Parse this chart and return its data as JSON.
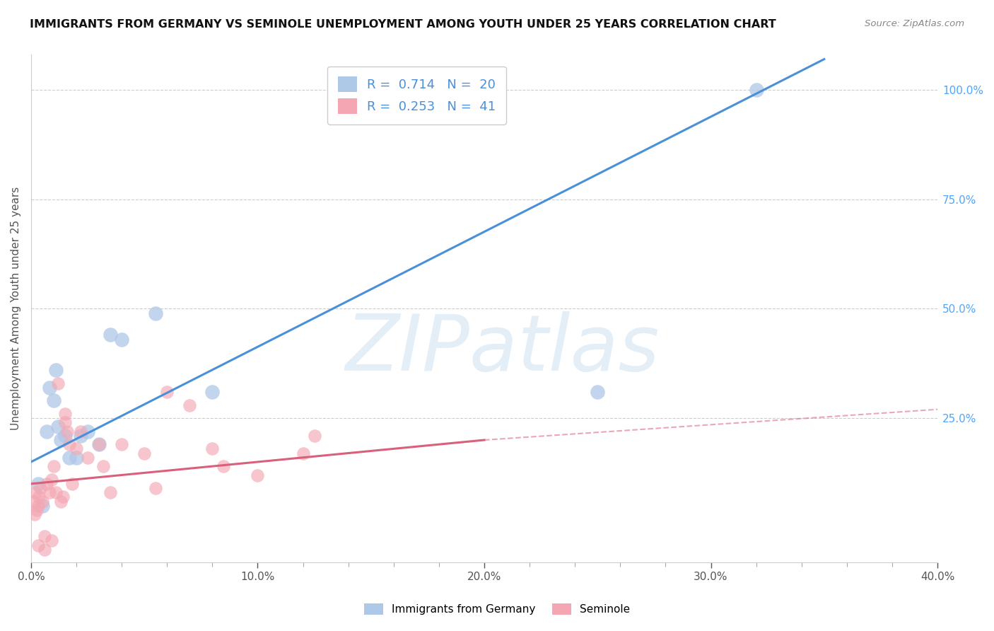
{
  "title": "IMMIGRANTS FROM GERMANY VS SEMINOLE UNEMPLOYMENT AMONG YOUTH UNDER 25 YEARS CORRELATION CHART",
  "source": "Source: ZipAtlas.com",
  "ylabel": "Unemployment Among Youth under 25 years",
  "xlabel_ticks": [
    "0.0%",
    "",
    "",
    "",
    "",
    "10.0%",
    "",
    "",
    "",
    "",
    "20.0%",
    "",
    "",
    "",
    "",
    "30.0%",
    "",
    "",
    "",
    "",
    "40.0%"
  ],
  "xlabel_vals": [
    0,
    2,
    4,
    6,
    8,
    10,
    12,
    14,
    16,
    18,
    20,
    22,
    24,
    26,
    28,
    30,
    32,
    34,
    36,
    38,
    40
  ],
  "xlabel_major_ticks": [
    0,
    10,
    20,
    30,
    40
  ],
  "xlabel_major_labels": [
    "0.0%",
    "10.0%",
    "20.0%",
    "30.0%",
    "40.0%"
  ],
  "ylabel_right_ticks": [
    "100.0%",
    "75.0%",
    "50.0%",
    "25.0%"
  ],
  "ylabel_right_vals": [
    100,
    75,
    50,
    25
  ],
  "xlim": [
    0,
    40
  ],
  "ylim": [
    -8,
    108
  ],
  "blue_R": 0.714,
  "blue_N": 20,
  "pink_R": 0.253,
  "pink_N": 41,
  "blue_color": "#aec8e8",
  "pink_color": "#f4a7b2",
  "blue_line_color": "#4a90d9",
  "pink_line_color": "#d9607a",
  "legend_label_blue": "Immigrants from Germany",
  "legend_label_pink": "Seminole",
  "watermark": "ZIPatlas",
  "blue_x": [
    0.3,
    0.5,
    0.7,
    0.8,
    1.0,
    1.1,
    1.2,
    1.3,
    1.5,
    1.7,
    2.0,
    2.2,
    2.5,
    3.0,
    3.5,
    4.0,
    5.5,
    8.0,
    25.0,
    32.0
  ],
  "blue_y": [
    10,
    5,
    22,
    32,
    29,
    36,
    23,
    20,
    21,
    16,
    16,
    21,
    22,
    19,
    44,
    43,
    49,
    31,
    31,
    100
  ],
  "pink_x": [
    0.1,
    0.15,
    0.2,
    0.25,
    0.3,
    0.35,
    0.4,
    0.5,
    0.6,
    0.7,
    0.8,
    0.9,
    1.0,
    1.1,
    1.2,
    1.3,
    1.4,
    1.5,
    1.6,
    1.7,
    1.8,
    2.0,
    2.5,
    3.0,
    3.5,
    4.0,
    5.0,
    6.0,
    7.0,
    8.0,
    10.0,
    12.0,
    0.3,
    0.6,
    0.9,
    1.5,
    2.2,
    3.2,
    5.5,
    8.5,
    12.5
  ],
  "pink_y": [
    6,
    3,
    8,
    4,
    5,
    7,
    9,
    6,
    -2,
    10,
    8,
    11,
    14,
    8,
    33,
    6,
    7,
    26,
    22,
    19,
    10,
    18,
    16,
    19,
    8,
    19,
    17,
    31,
    28,
    18,
    12,
    17,
    -4,
    -5,
    -3,
    24,
    22,
    14,
    9,
    14,
    21
  ],
  "blue_line_x0": 0,
  "blue_line_y0": 15,
  "blue_line_x1": 35,
  "blue_line_y1": 107,
  "pink_solid_x0": 0,
  "pink_solid_y0": 10,
  "pink_solid_x1": 20,
  "pink_solid_y1": 20,
  "pink_dash_x0": 20,
  "pink_dash_y0": 20,
  "pink_dash_x1": 40,
  "pink_dash_y1": 27
}
